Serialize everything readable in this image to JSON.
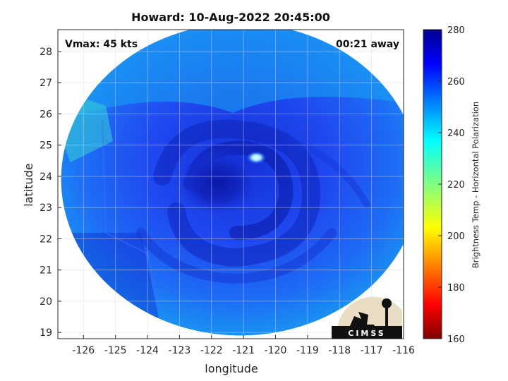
{
  "title": "Howard: 10-Aug-2022 20:45:00",
  "annotations": {
    "vmax": "Vmax: 45 kts",
    "time_away": "00:21 away"
  },
  "axes": {
    "xlabel": "longitude",
    "ylabel": "latitude",
    "xlim": [
      -126.8,
      -116
    ],
    "ylim": [
      18.8,
      28.7
    ],
    "xticks": [
      -126,
      -125,
      -124,
      -123,
      -122,
      -121,
      -120,
      -119,
      -118,
      -117,
      -116
    ],
    "yticks": [
      19,
      20,
      21,
      22,
      23,
      24,
      25,
      26,
      27,
      28
    ],
    "grid": true
  },
  "colorbar": {
    "label": "Brightness Temp - Horizontal Polarization",
    "range": [
      160,
      280
    ],
    "ticks": [
      160,
      180,
      200,
      220,
      240,
      260,
      280
    ],
    "colormap": "jet"
  },
  "storm": {
    "name": "Howard",
    "center_lon": -121.8,
    "center_lat": 23.8,
    "hotspot_lon": -120.6,
    "hotspot_lat": 24.6
  },
  "swath": {
    "center_lon": -121.1,
    "center_lat": 23.9,
    "radius_lon": 5.6,
    "radius_lat": 5.0
  },
  "logo": {
    "text": "CIMSS"
  },
  "colors": {
    "background_low": "#1a45ff",
    "background_edge": "#12b4f2",
    "core": "#0a1aa8",
    "hotspot": "#ffffff"
  }
}
